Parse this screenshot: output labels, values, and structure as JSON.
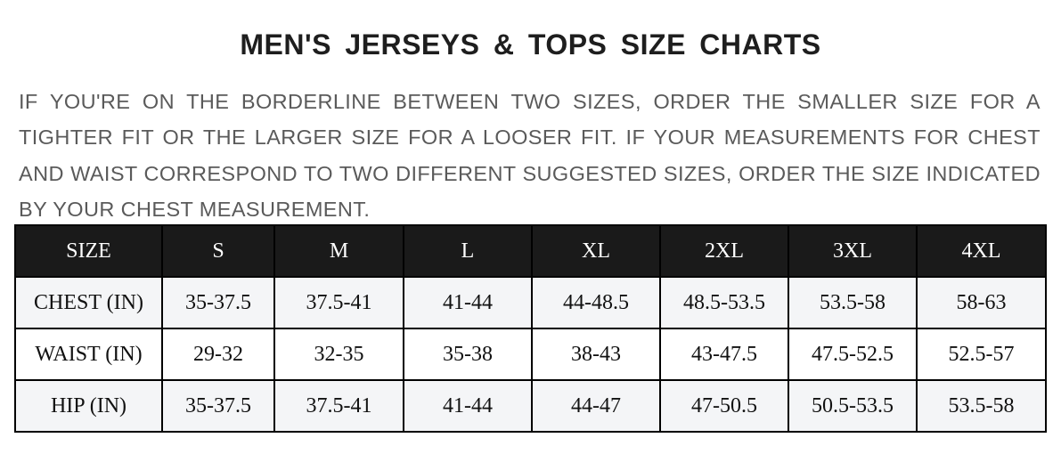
{
  "title": "MEN'S JERSEYS & TOPS SIZE CHARTS",
  "note": "IF YOU'RE ON THE BORDERLINE BETWEEN TWO SIZES, ORDER THE SMALLER SIZE FOR A TIGHTER FIT OR THE LARGER SIZE FOR A LOOSER FIT. IF YOUR MEASUREMENTS FOR CHEST AND WAIST CORRESPOND TO TWO DIFFERENT SUGGESTED SIZES, ORDER THE SIZE INDICATED BY YOUR CHEST MEASUREMENT.",
  "colors": {
    "header_bg": "#1a1a1a",
    "row_alt_bg": "#f4f5f7",
    "text_gray": "#5a5a5a"
  },
  "table": {
    "headers": [
      "SIZE",
      "S",
      "M",
      "L",
      "XL",
      "2XL",
      "3XL",
      "4XL"
    ],
    "rows": [
      [
        "CHEST (IN)",
        "35-37.5",
        "37.5-41",
        "41-44",
        "44-48.5",
        "48.5-53.5",
        "53.5-58",
        "58-63"
      ],
      [
        "WAIST (IN)",
        "29-32",
        "32-35",
        "35-38",
        "38-43",
        "43-47.5",
        "47.5-52.5",
        "52.5-57"
      ],
      [
        "HIP (IN)",
        "35-37.5",
        "37.5-41",
        "41-44",
        "44-47",
        "47-50.5",
        "50.5-53.5",
        "53.5-58"
      ]
    ]
  }
}
